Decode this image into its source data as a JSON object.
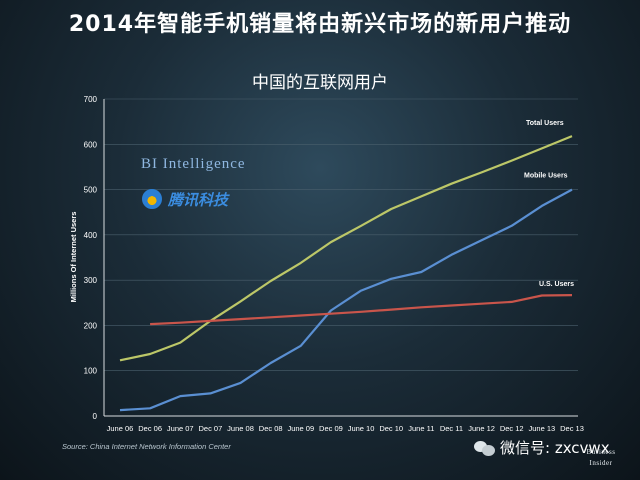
{
  "headline": "2014年智能手机销量将由新兴市场的新用户推动",
  "source": "Source: China Internet Network Information Center",
  "watermark_bi": "BI Intelligence",
  "watermark_tencent": "腾讯科技",
  "wechat_label": "微信号: zxcvwx",
  "publisher_logo": [
    "Business",
    "Insider"
  ],
  "colors": {
    "total": "#bcc768",
    "mobile": "#5a8fd2",
    "us": "#c9554b",
    "text": "#ffffff"
  },
  "chart_data": {
    "type": "line",
    "title": "中国的互联网用户",
    "xlabel": "",
    "ylabel": "Millions Of Internet Users",
    "ylim": [
      0,
      700
    ],
    "yticks": [
      0,
      100,
      200,
      300,
      400,
      500,
      600,
      700
    ],
    "grid": true,
    "categories": [
      "June 06",
      "Dec 06",
      "June 07",
      "Dec 07",
      "June 08",
      "Dec 08",
      "June 09",
      "Dec 09",
      "June 10",
      "Dec 10",
      "June 11",
      "Dec 11",
      "June 12",
      "Dec 12",
      "June 13",
      "Dec 13"
    ],
    "series": [
      {
        "name": "Total Users",
        "values": [
          123,
          137,
          162,
          210,
          253,
          298,
          338,
          384,
          420,
          457,
          485,
          513,
          538,
          564,
          591,
          618
        ]
      },
      {
        "name": "Mobile Users",
        "values": [
          13,
          17,
          44,
          50,
          73,
          117,
          155,
          233,
          277,
          303,
          318,
          356,
          388,
          420,
          464,
          500
        ]
      },
      {
        "name": "U.S. Users",
        "values": [
          null,
          203,
          206,
          210,
          214,
          218,
          222,
          226,
          230,
          235,
          240,
          244,
          248,
          252,
          266,
          267
        ]
      }
    ]
  }
}
